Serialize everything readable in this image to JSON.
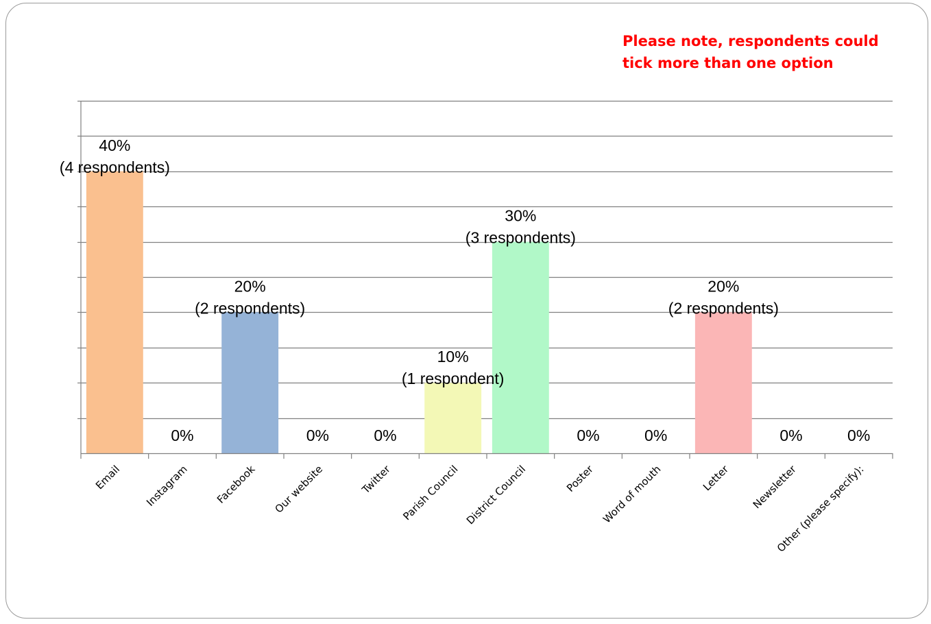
{
  "note": {
    "line1": "Please note, respondents could",
    "line2": "tick more than one option"
  },
  "chart_data": {
    "type": "bar",
    "categories": [
      "Email",
      "Instagram",
      "Facebook",
      "Our website",
      "Twitter",
      "Parish Council",
      "District Council",
      "Poster",
      "Word of mouth",
      "Letter",
      "Newsletter",
      "Other (please specify):"
    ],
    "values": [
      40,
      0,
      20,
      0,
      0,
      10,
      30,
      0,
      0,
      20,
      0,
      0
    ],
    "value_labels": [
      [
        "40%",
        "(4 respondents)"
      ],
      [
        "0%"
      ],
      [
        "20%",
        "(2 respondents)"
      ],
      [
        "0%"
      ],
      [
        "0%"
      ],
      [
        "10%",
        "(1 respondent)"
      ],
      [
        "30%",
        "(3 respondents)"
      ],
      [
        "0%"
      ],
      [
        "0%"
      ],
      [
        "20%",
        "(2 respondents)"
      ],
      [
        "0%"
      ],
      [
        "0%"
      ]
    ],
    "colors": [
      "#fac08f",
      null,
      "#95b3d7",
      null,
      null,
      "#f3f8b6",
      "#b1f8c8",
      null,
      null,
      "#fbb6b6",
      null,
      null
    ],
    "ylim": [
      0,
      50
    ],
    "grid": true,
    "title": "",
    "xlabel": "",
    "ylabel": ""
  }
}
